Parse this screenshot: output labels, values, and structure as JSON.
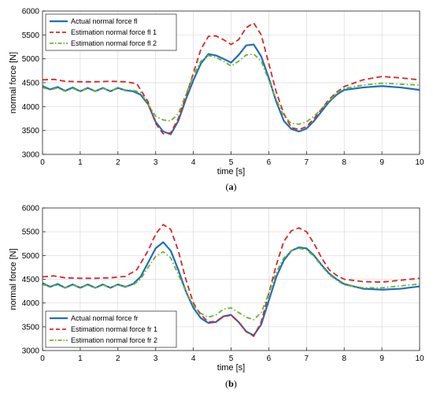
{
  "chart_data": [
    {
      "type": "line",
      "panel_label": "(a)",
      "xlabel": "time [s]",
      "ylabel": "normal force [N]",
      "xlim": [
        0,
        10
      ],
      "ylim": [
        3000,
        6000
      ],
      "xticks": [
        0,
        1,
        2,
        3,
        4,
        5,
        6,
        7,
        8,
        9,
        10
      ],
      "yticks": [
        3000,
        3500,
        4000,
        4500,
        5000,
        5500,
        6000
      ],
      "grid": true,
      "legend_position": "top-left",
      "series": [
        {
          "name": "Actual normal force fl",
          "color": "#1f6fb5",
          "style": "solid",
          "x": [
            0,
            0.2,
            0.4,
            0.6,
            0.8,
            1.0,
            1.2,
            1.4,
            1.6,
            1.8,
            2.0,
            2.2,
            2.4,
            2.6,
            2.8,
            3.0,
            3.2,
            3.4,
            3.6,
            3.8,
            4.0,
            4.2,
            4.4,
            4.6,
            4.8,
            5.0,
            5.2,
            5.4,
            5.6,
            5.8,
            6.0,
            6.2,
            6.4,
            6.6,
            6.8,
            7.0,
            7.2,
            7.4,
            7.6,
            7.8,
            8.0,
            8.5,
            9.0,
            9.5,
            10.0
          ],
          "y": [
            4430,
            4360,
            4410,
            4330,
            4400,
            4320,
            4390,
            4320,
            4390,
            4320,
            4390,
            4340,
            4320,
            4250,
            4050,
            3680,
            3480,
            3420,
            3700,
            4150,
            4550,
            4900,
            5100,
            5070,
            5000,
            4920,
            5080,
            5280,
            5300,
            5050,
            4600,
            4100,
            3700,
            3530,
            3480,
            3540,
            3700,
            3900,
            4100,
            4250,
            4350,
            4400,
            4430,
            4400,
            4350
          ]
        },
        {
          "name": "Estimation normal force fl 1",
          "color": "#d62728",
          "style": "dashed",
          "x": [
            0,
            0.3,
            0.6,
            1.0,
            1.4,
            1.8,
            2.2,
            2.5,
            2.8,
            3.0,
            3.2,
            3.4,
            3.6,
            3.8,
            4.0,
            4.2,
            4.4,
            4.6,
            4.8,
            5.0,
            5.2,
            5.4,
            5.6,
            5.8,
            6.0,
            6.2,
            6.4,
            6.6,
            6.8,
            7.0,
            7.2,
            7.4,
            7.6,
            7.8,
            8.0,
            8.5,
            9.0,
            9.5,
            10.0
          ],
          "y": [
            4560,
            4570,
            4530,
            4520,
            4520,
            4530,
            4520,
            4480,
            4100,
            3650,
            3430,
            3450,
            3750,
            4200,
            4700,
            5200,
            5470,
            5480,
            5400,
            5300,
            5400,
            5650,
            5750,
            5500,
            4900,
            4300,
            3850,
            3560,
            3520,
            3580,
            3750,
            3950,
            4150,
            4300,
            4420,
            4560,
            4630,
            4600,
            4560
          ]
        },
        {
          "name": "Estimation normal force fl 2",
          "color": "#6ab42d",
          "style": "dashdot",
          "x": [
            0,
            0.2,
            0.4,
            0.6,
            0.8,
            1.0,
            1.2,
            1.4,
            1.6,
            1.8,
            2.0,
            2.2,
            2.4,
            2.6,
            2.8,
            3.0,
            3.2,
            3.4,
            3.6,
            3.8,
            4.0,
            4.2,
            4.4,
            4.6,
            4.8,
            5.0,
            5.2,
            5.4,
            5.6,
            5.8,
            6.0,
            6.2,
            6.4,
            6.6,
            6.8,
            7.0,
            7.2,
            7.4,
            7.6,
            7.8,
            8.0,
            8.5,
            9.0,
            9.5,
            10.0
          ],
          "y": [
            4400,
            4350,
            4390,
            4320,
            4380,
            4320,
            4380,
            4320,
            4380,
            4330,
            4380,
            4350,
            4340,
            4300,
            4050,
            3800,
            3720,
            3700,
            3850,
            4250,
            4650,
            4950,
            5070,
            5030,
            4950,
            4850,
            4950,
            5080,
            5100,
            4950,
            4550,
            4150,
            3800,
            3650,
            3630,
            3680,
            3800,
            3950,
            4120,
            4280,
            4380,
            4450,
            4490,
            4470,
            4450
          ]
        }
      ]
    },
    {
      "type": "line",
      "panel_label": "(b)",
      "xlabel": "time [s]",
      "ylabel": "normal force [N]",
      "xlim": [
        0,
        10
      ],
      "ylim": [
        3000,
        6000
      ],
      "xticks": [
        0,
        1,
        2,
        3,
        4,
        5,
        6,
        7,
        8,
        9,
        10
      ],
      "yticks": [
        3000,
        3500,
        4000,
        4500,
        5000,
        5500,
        6000
      ],
      "grid": true,
      "legend_position": "bottom-left",
      "series": [
        {
          "name": "Actual normal force fr",
          "color": "#1f6fb5",
          "style": "solid",
          "x": [
            0,
            0.2,
            0.4,
            0.6,
            0.8,
            1.0,
            1.2,
            1.4,
            1.6,
            1.8,
            2.0,
            2.2,
            2.4,
            2.6,
            2.8,
            3.0,
            3.2,
            3.4,
            3.6,
            3.8,
            4.0,
            4.2,
            4.4,
            4.6,
            4.8,
            5.0,
            5.2,
            5.4,
            5.6,
            5.8,
            6.0,
            6.2,
            6.4,
            6.6,
            6.8,
            7.0,
            7.2,
            7.4,
            7.6,
            7.8,
            8.0,
            8.5,
            9.0,
            9.5,
            10.0
          ],
          "y": [
            4420,
            4340,
            4400,
            4320,
            4390,
            4320,
            4390,
            4320,
            4390,
            4320,
            4390,
            4340,
            4400,
            4550,
            4850,
            5150,
            5280,
            5100,
            4700,
            4250,
            3900,
            3680,
            3580,
            3600,
            3720,
            3750,
            3600,
            3400,
            3320,
            3550,
            4050,
            4550,
            4900,
            5100,
            5170,
            5150,
            5000,
            4800,
            4620,
            4500,
            4400,
            4300,
            4280,
            4300,
            4350
          ]
        },
        {
          "name": "Estimation normal force fr 1",
          "color": "#d62728",
          "style": "dashed",
          "x": [
            0,
            0.3,
            0.6,
            1.0,
            1.4,
            1.8,
            2.2,
            2.5,
            2.8,
            3.0,
            3.2,
            3.4,
            3.6,
            3.8,
            4.0,
            4.2,
            4.4,
            4.6,
            4.8,
            5.0,
            5.2,
            5.4,
            5.6,
            5.8,
            6.0,
            6.2,
            6.4,
            6.6,
            6.8,
            7.0,
            7.2,
            7.4,
            7.6,
            7.8,
            8.0,
            8.5,
            9.0,
            9.5,
            10.0
          ],
          "y": [
            4550,
            4570,
            4530,
            4520,
            4520,
            4530,
            4560,
            4700,
            5100,
            5450,
            5650,
            5550,
            5100,
            4500,
            4000,
            3750,
            3600,
            3610,
            3720,
            3740,
            3600,
            3400,
            3300,
            3600,
            4200,
            4800,
            5300,
            5520,
            5580,
            5500,
            5250,
            4950,
            4700,
            4580,
            4500,
            4450,
            4440,
            4480,
            4520
          ]
        },
        {
          "name": "Estimation normal force fr 2",
          "color": "#6ab42d",
          "style": "dashdot",
          "x": [
            0,
            0.2,
            0.4,
            0.6,
            0.8,
            1.0,
            1.2,
            1.4,
            1.6,
            1.8,
            2.0,
            2.2,
            2.4,
            2.6,
            2.8,
            3.0,
            3.2,
            3.4,
            3.6,
            3.8,
            4.0,
            4.2,
            4.4,
            4.6,
            4.8,
            5.0,
            5.2,
            5.4,
            5.6,
            5.8,
            6.0,
            6.2,
            6.4,
            6.6,
            6.8,
            7.0,
            7.2,
            7.4,
            7.6,
            7.8,
            8.0,
            8.5,
            9.0,
            9.5,
            10.0
          ],
          "y": [
            4390,
            4350,
            4380,
            4320,
            4380,
            4320,
            4380,
            4320,
            4380,
            4330,
            4380,
            4350,
            4380,
            4500,
            4750,
            4980,
            5080,
            4950,
            4600,
            4250,
            3950,
            3780,
            3700,
            3750,
            3870,
            3900,
            3800,
            3700,
            3650,
            3800,
            4200,
            4650,
            4950,
            5100,
            5150,
            5120,
            4980,
            4780,
            4600,
            4480,
            4380,
            4320,
            4320,
            4360,
            4400
          ]
        }
      ]
    }
  ]
}
